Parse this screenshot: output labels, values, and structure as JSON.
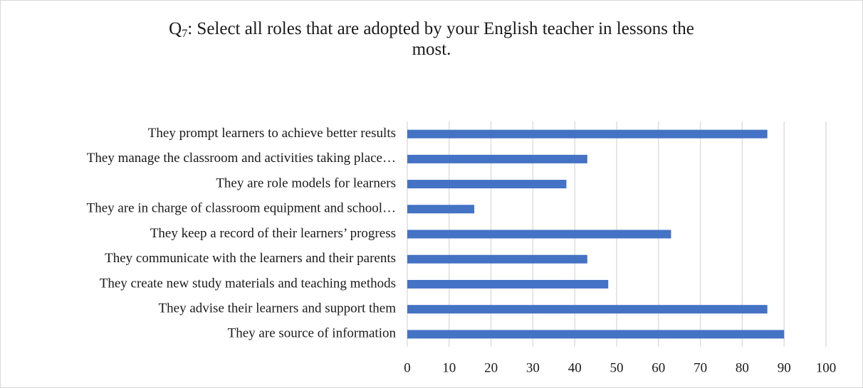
{
  "chart_data": {
    "type": "bar",
    "orientation": "horizontal",
    "title": [
      "Q",
      "7",
      ": Select all roles that are adopted by your English teacher in lessons the most."
    ],
    "categories": [
      "They prompt learners to achieve better results",
      "They manage the classroom and activities taking place…",
      "They are role models for learners",
      "They are in charge of classroom equipment and school…",
      "They keep a record of their learners’ progress",
      "They communicate with the learners and their parents",
      "They create new study materials and teaching methods",
      "They advise their learners and support them",
      "They are source of information"
    ],
    "values": [
      86,
      43,
      38,
      16,
      63,
      43,
      48,
      86,
      90
    ],
    "color": "#4472c4",
    "xlim": [
      0,
      100
    ],
    "xticks": [
      0,
      10,
      20,
      30,
      40,
      50,
      60,
      70,
      80,
      90,
      100
    ],
    "grid": true
  }
}
